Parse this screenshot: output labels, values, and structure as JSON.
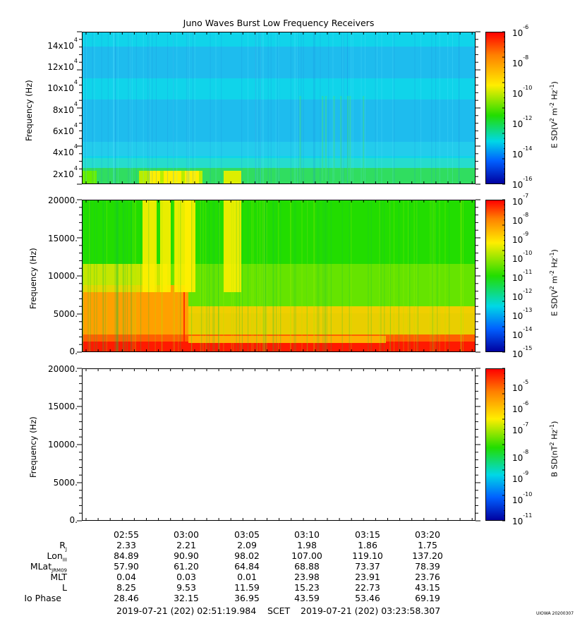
{
  "title": "Juno Waves Burst Low Frequency Receivers",
  "stamp": "UIOWA 20200307",
  "colors": {
    "red": "#ff1a00",
    "orange": "#ffa000",
    "yellow": "#ffee00",
    "green": "#22dd00",
    "cyan": "#00d8e6",
    "blue": "#0060ff",
    "navy": "#0000a0"
  },
  "chart_data": [
    {
      "type": "heatmap",
      "ylabel": "Frequency (Hz)",
      "y_ticks": [
        {
          "base": "2x10",
          "exp": "4",
          "value": 20000
        },
        {
          "base": "4x10",
          "exp": "4",
          "value": 40000
        },
        {
          "base": "6x10",
          "exp": "4",
          "value": 60000
        },
        {
          "base": "8x10",
          "exp": "4",
          "value": 80000
        },
        {
          "base": "10x10",
          "exp": "4",
          "value": 100000
        },
        {
          "base": "12x10",
          "exp": "4",
          "value": 120000
        },
        {
          "base": "14x10",
          "exp": "4",
          "value": 140000
        }
      ],
      "ylim": [
        10000,
        150000
      ],
      "colorbar": {
        "label_pre": "E SD(V",
        "label_mid": " m",
        "label_mid2": " Hz",
        "label_post": ")",
        "exp_a": "2",
        "exp_b": "-2",
        "exp_c": "-1",
        "scale": "log",
        "ticks": [
          {
            "base": "10",
            "exp": "-6"
          },
          {
            "base": "10",
            "exp": "-8"
          },
          {
            "base": "10",
            "exp": "-10"
          },
          {
            "base": "10",
            "exp": "-12"
          },
          {
            "base": "10",
            "exp": "-14"
          },
          {
            "base": "10",
            "exp": "-16"
          }
        ],
        "range": [
          1e-16,
          1e-06
        ]
      }
    },
    {
      "type": "heatmap",
      "ylabel": "Frequency (Hz)",
      "y_ticks": [
        "20000.",
        "15000.",
        "10000.",
        "5000.",
        "0."
      ],
      "ylim": [
        0,
        20000
      ],
      "colorbar": {
        "label_pre": "E SD(V",
        "label_mid": " m",
        "label_mid2": " Hz",
        "label_post": ")",
        "exp_a": "2",
        "exp_b": "-2",
        "exp_c": "-1",
        "scale": "log",
        "ticks": [
          {
            "base": "10",
            "exp": "-7"
          },
          {
            "base": "10",
            "exp": "-8"
          },
          {
            "base": "10",
            "exp": "-9"
          },
          {
            "base": "10",
            "exp": "-10"
          },
          {
            "base": "10",
            "exp": "-11"
          },
          {
            "base": "10",
            "exp": "-12"
          },
          {
            "base": "10",
            "exp": "-13"
          },
          {
            "base": "10",
            "exp": "-14"
          },
          {
            "base": "10",
            "exp": "-15"
          }
        ],
        "range": [
          1e-15,
          1e-07
        ]
      }
    },
    {
      "type": "heatmap",
      "ylabel": "Frequency (Hz)",
      "y_ticks": [
        "20000.",
        "15000.",
        "10000.",
        "5000.",
        "0."
      ],
      "ylim": [
        0,
        20000
      ],
      "empty": true,
      "colorbar": {
        "label_pre": "B SD(nT",
        "label_mid": " Hz",
        "label_post": ")",
        "exp_a": "2",
        "exp_b": "-1",
        "scale": "log",
        "ticks": [
          {
            "base": "10",
            "exp": "-5"
          },
          {
            "base": "10",
            "exp": "-6"
          },
          {
            "base": "10",
            "exp": "-7"
          },
          {
            "base": "10",
            "exp": "-8"
          },
          {
            "base": "10",
            "exp": "-9"
          },
          {
            "base": "10",
            "exp": "-10"
          },
          {
            "base": "10",
            "exp": "-11"
          }
        ],
        "range": [
          1e-11,
          0.0001
        ]
      }
    }
  ],
  "x_axis": {
    "ticks": [
      "02:55",
      "03:00",
      "03:05",
      "03:10",
      "03:15",
      "03:20"
    ]
  },
  "ephemeris": {
    "labels": [
      {
        "main": "R",
        "sub": "J"
      },
      {
        "main": "Lon",
        "sub": "III"
      },
      {
        "main": "MLat",
        "sub": "JRM09"
      },
      {
        "main": "MLT",
        "sub": ""
      },
      {
        "main": "L",
        "sub": ""
      },
      {
        "main": "Io Phase",
        "sub": ""
      }
    ],
    "rows": [
      [
        "2.33",
        "2.21",
        "2.09",
        "1.98",
        "1.86",
        "1.75"
      ],
      [
        "84.89",
        "90.90",
        "98.02",
        "107.00",
        "119.10",
        "137.20"
      ],
      [
        "57.90",
        "61.20",
        "64.84",
        "68.88",
        "73.37",
        "78.39"
      ],
      [
        "0.04",
        "0.03",
        "0.01",
        "23.98",
        "23.91",
        "23.76"
      ],
      [
        "8.25",
        "9.53",
        "11.59",
        "15.23",
        "22.73",
        "43.15"
      ],
      [
        "28.46",
        "32.15",
        "36.95",
        "43.59",
        "53.46",
        "69.19"
      ]
    ]
  },
  "footer": {
    "start": "2019-07-21 (202) 02:51:19.984",
    "scet": "SCET",
    "end": "2019-07-21 (202) 03:23:58.307"
  }
}
